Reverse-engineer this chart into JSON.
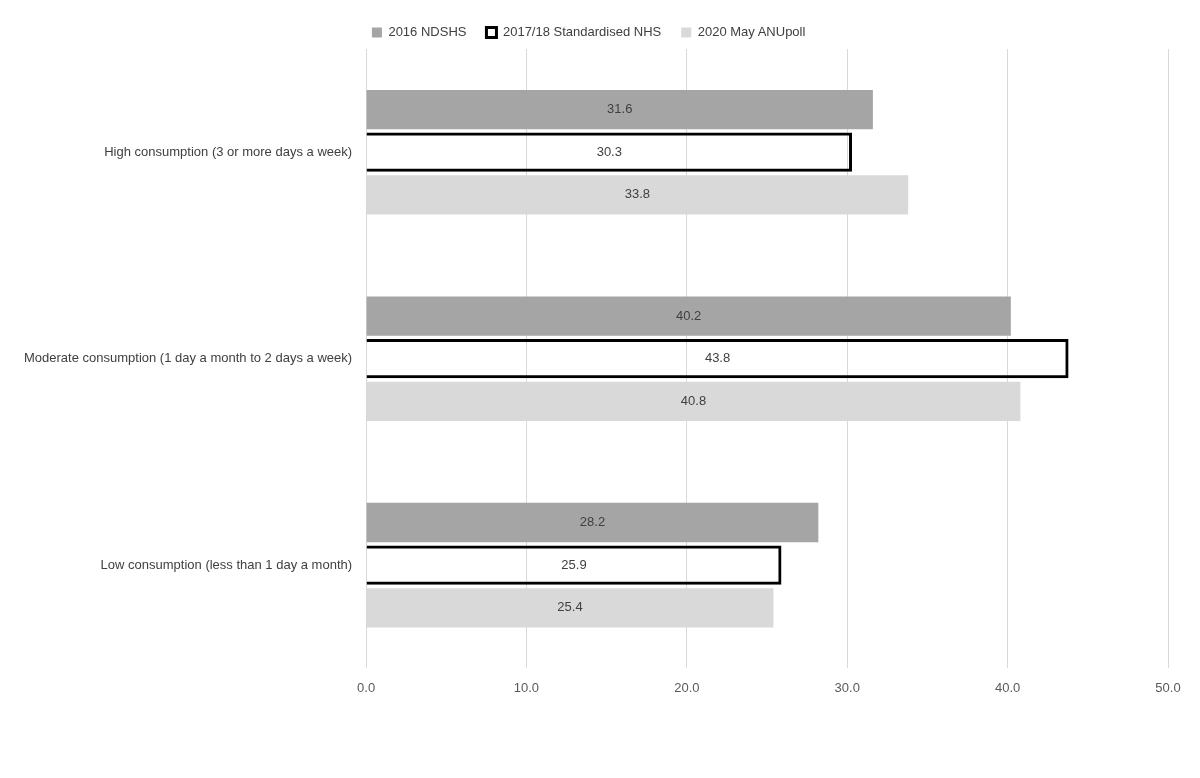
{
  "chart_data": {
    "type": "bar",
    "orientation": "horizontal",
    "categories": [
      "High consumption (3 or more days a week)",
      "Moderate consumption (1 day a month to 2 days a week)",
      "Low consumption (less than 1 day a month)"
    ],
    "series": [
      {
        "name": "2016 NDSHS",
        "color": "#a5a5a5",
        "values": [
          31.6,
          40.2,
          28.2
        ]
      },
      {
        "name": "2017/18 Standardised NHS",
        "color": "#000000",
        "values": [
          30.3,
          43.8,
          25.9
        ]
      },
      {
        "name": "2020 May ANUpoll",
        "color": "#d9d9d9",
        "values": [
          33.8,
          40.8,
          25.4
        ]
      }
    ],
    "xlim": [
      0,
      50
    ],
    "xticks": [
      {
        "value": 0,
        "label": "0.0"
      },
      {
        "value": 10,
        "label": "10.0"
      },
      {
        "value": 20,
        "label": "20.0"
      },
      {
        "value": 30,
        "label": "30.0"
      },
      {
        "value": 40,
        "label": "40.0"
      },
      {
        "value": 50,
        "label": "50.0"
      }
    ],
    "grid": "x",
    "legend": "top",
    "data_labels": true
  }
}
